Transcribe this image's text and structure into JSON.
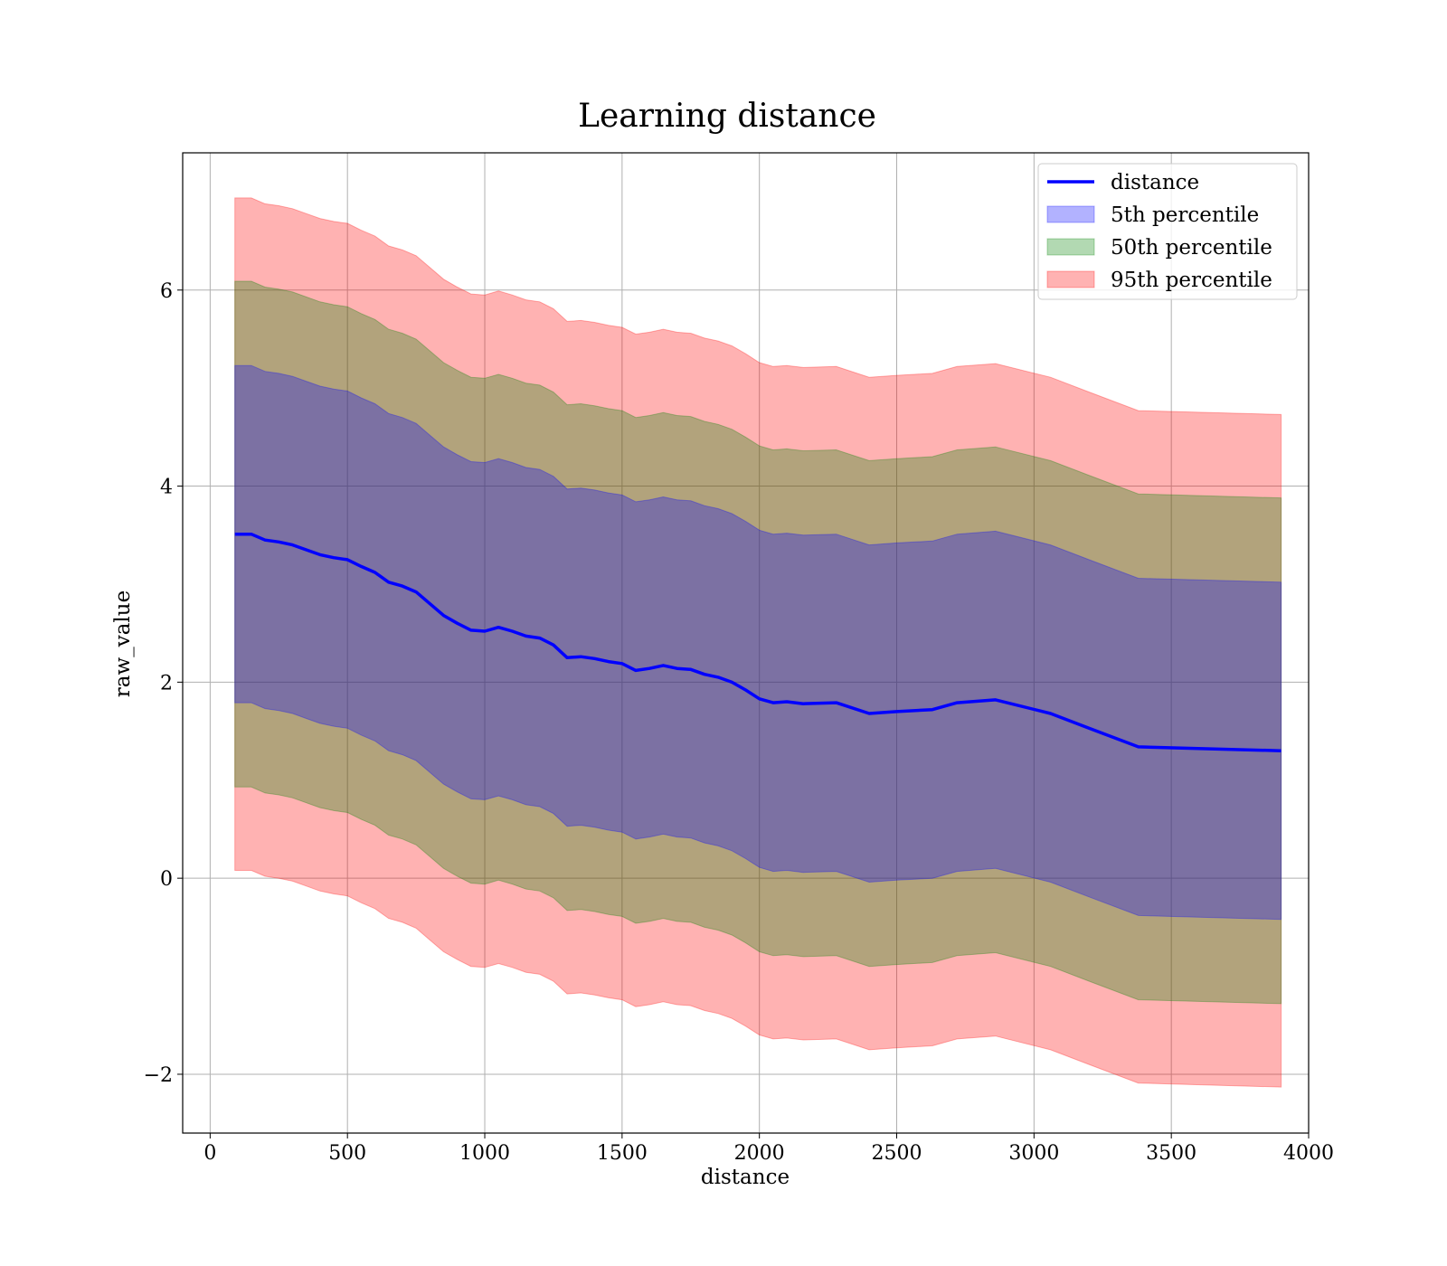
{
  "chart_data": {
    "type": "line",
    "title": "Learning distance",
    "xlabel": "distance",
    "ylabel": "raw_value",
    "xlim": [
      -100,
      4000
    ],
    "ylim": [
      -2.6,
      7.4
    ],
    "xticks": [
      0,
      500,
      1000,
      1500,
      2000,
      2500,
      3000,
      3500,
      4000
    ],
    "yticks": [
      -2,
      0,
      2,
      4,
      6
    ],
    "xtick_labels": [
      "0",
      "500",
      "1000",
      "1500",
      "2000",
      "2500",
      "3000",
      "3500",
      "4000"
    ],
    "ytick_labels": [
      "−2",
      "0",
      "2",
      "4",
      "6"
    ],
    "grid": true,
    "legend_position": "top-right",
    "x": [
      90,
      150,
      200,
      250,
      300,
      350,
      400,
      450,
      500,
      550,
      600,
      650,
      700,
      750,
      800,
      850,
      900,
      950,
      1000,
      1050,
      1100,
      1150,
      1200,
      1250,
      1300,
      1350,
      1400,
      1450,
      1500,
      1550,
      1600,
      1650,
      1700,
      1750,
      1800,
      1850,
      1900,
      1950,
      2000,
      2050,
      2100,
      2160,
      2280,
      2400,
      2500,
      2630,
      2720,
      2860,
      3060,
      3200,
      3380,
      3900
    ],
    "series": [
      {
        "name": "distance",
        "color": "#0000ff",
        "values": [
          3.51,
          3.51,
          3.45,
          3.43,
          3.4,
          3.35,
          3.3,
          3.27,
          3.25,
          3.18,
          3.12,
          3.02,
          2.98,
          2.92,
          2.8,
          2.68,
          2.6,
          2.53,
          2.52,
          2.56,
          2.52,
          2.47,
          2.45,
          2.38,
          2.25,
          2.26,
          2.24,
          2.21,
          2.19,
          2.12,
          2.14,
          2.17,
          2.14,
          2.13,
          2.08,
          2.05,
          2.0,
          1.92,
          1.83,
          1.79,
          1.8,
          1.78,
          1.79,
          1.68,
          1.7,
          1.72,
          1.79,
          1.82,
          1.68,
          1.53,
          1.34,
          1.3
        ]
      }
    ],
    "bands": [
      {
        "name": "95th percentile",
        "color": "#ff0000",
        "opacity": 0.3,
        "offset": 3.43
      },
      {
        "name": "50th percentile",
        "color": "#008000",
        "opacity": 0.3,
        "offset": 2.58
      },
      {
        "name": "5th percentile",
        "color": "#0000ff",
        "opacity": 0.3,
        "offset": 1.72
      }
    ],
    "legend": [
      {
        "label": "distance",
        "kind": "line",
        "color": "#0000ff"
      },
      {
        "label": "5th percentile",
        "kind": "patch",
        "color": "#0000ff"
      },
      {
        "label": "50th percentile",
        "kind": "patch",
        "color": "#008000"
      },
      {
        "label": "95th percentile",
        "kind": "patch",
        "color": "#ff0000"
      }
    ]
  }
}
